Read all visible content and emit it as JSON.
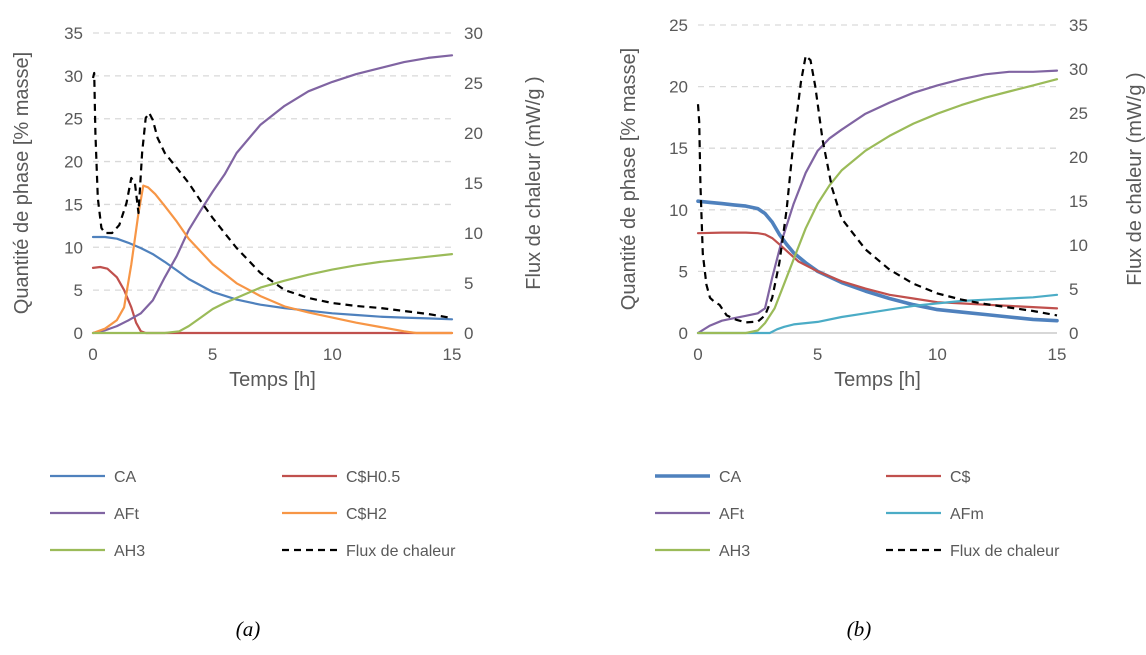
{
  "chart_data": [
    {
      "type": "line",
      "caption": "(a)",
      "xlabel": "Temps [h]",
      "ylabel": "Quantité de phase [% masse]",
      "y2label": "Flux de chaleur (mW/g )",
      "xlim": [
        0,
        15
      ],
      "ylim": [
        0,
        35
      ],
      "y2lim": [
        0,
        30
      ],
      "xticks": [
        "0",
        "5",
        "10",
        "15"
      ],
      "yticks": [
        "0",
        "5",
        "10",
        "15",
        "20",
        "25",
        "30",
        "35"
      ],
      "y2ticks": [
        "0",
        "5",
        "10",
        "15",
        "20",
        "25",
        "30"
      ],
      "grid": "horizontal dashed",
      "legend_position": "bottom",
      "series": [
        {
          "name": "CA",
          "color": "#4f81bd",
          "style": "solid",
          "axis": "left",
          "x": [
            0,
            0.5,
            1,
            1.5,
            2,
            2.5,
            3,
            3.5,
            4,
            5,
            6,
            7,
            8,
            9,
            10,
            11,
            12,
            13,
            14,
            15
          ],
          "y": [
            11.2,
            11.2,
            11,
            10.5,
            9.9,
            9.2,
            8.3,
            7.3,
            6.3,
            4.8,
            3.9,
            3.3,
            2.9,
            2.6,
            2.3,
            2.1,
            1.9,
            1.8,
            1.7,
            1.6
          ]
        },
        {
          "name": "C$H0.5",
          "color": "#c0504d",
          "style": "solid",
          "axis": "left",
          "x": [
            0,
            0.3,
            0.6,
            1,
            1.3,
            1.6,
            1.8,
            2,
            2.2,
            3,
            5,
            10,
            15
          ],
          "y": [
            7.6,
            7.7,
            7.5,
            6.5,
            5,
            3,
            1.2,
            0.2,
            0,
            0,
            0,
            0,
            0
          ]
        },
        {
          "name": "AFt",
          "color": "#8064a2",
          "style": "solid",
          "axis": "left",
          "x": [
            0,
            0.5,
            1,
            1.5,
            2,
            2.5,
            3,
            3.5,
            4,
            4.5,
            5,
            5.5,
            6,
            7,
            8,
            9,
            10,
            11,
            12,
            13,
            14,
            15
          ],
          "y": [
            0,
            0.3,
            0.8,
            1.5,
            2.3,
            3.8,
            6.5,
            9,
            12,
            14.3,
            16.5,
            18.5,
            21,
            24.3,
            26.5,
            28.2,
            29.3,
            30.2,
            30.9,
            31.6,
            32.1,
            32.4
          ]
        },
        {
          "name": "C$H2",
          "color": "#f79646",
          "style": "solid",
          "axis": "left",
          "x": [
            0,
            0.5,
            1,
            1.3,
            1.6,
            1.9,
            2.1,
            2.3,
            2.6,
            3,
            3.5,
            4,
            5,
            6,
            7,
            8,
            9,
            10,
            11,
            12,
            13,
            13.5,
            14,
            15
          ],
          "y": [
            0,
            0.5,
            1.5,
            3,
            8,
            14,
            17.2,
            17,
            16.2,
            14.8,
            13,
            11,
            8,
            5.8,
            4.3,
            3.1,
            2.4,
            1.8,
            1.2,
            0.7,
            0.2,
            0,
            0,
            0
          ]
        },
        {
          "name": "AH3",
          "color": "#9bbb59",
          "style": "solid",
          "axis": "left",
          "x": [
            0,
            3,
            3.6,
            4,
            4.5,
            5,
            5.5,
            6,
            7,
            8,
            9,
            10,
            11,
            12,
            13,
            14,
            15
          ],
          "y": [
            0,
            0,
            0.2,
            0.8,
            1.8,
            2.8,
            3.5,
            4.1,
            5.3,
            6.1,
            6.8,
            7.4,
            7.9,
            8.3,
            8.6,
            8.9,
            9.2
          ]
        },
        {
          "name": "Flux de chaleur",
          "color": "#000000",
          "style": "dashed",
          "axis": "right",
          "x": [
            0,
            0.05,
            0.1,
            0.2,
            0.35,
            0.5,
            0.8,
            1.1,
            1.4,
            1.6,
            1.75,
            1.9,
            2.05,
            2.2,
            2.35,
            2.5,
            2.7,
            3,
            3.5,
            4,
            4.5,
            5,
            5.5,
            6,
            7,
            8,
            9,
            10,
            11,
            12,
            13,
            14,
            15
          ],
          "y": [
            25.5,
            26,
            20,
            13.5,
            10.5,
            10,
            10,
            10.8,
            13,
            15.5,
            15,
            12,
            18,
            21.5,
            22,
            21.3,
            19.5,
            18,
            16.5,
            15,
            13.2,
            11.5,
            10,
            8.5,
            6,
            4.3,
            3.5,
            3,
            2.7,
            2.5,
            2.2,
            1.9,
            1.5
          ]
        }
      ]
    },
    {
      "type": "line",
      "caption": "(b)",
      "xlabel": "Temps [h]",
      "ylabel": "Quantité de phase [% masse]",
      "y2label": "Flux de chaleur (mW/g )",
      "xlim": [
        0,
        15
      ],
      "ylim": [
        0,
        25
      ],
      "y2lim": [
        0,
        35
      ],
      "xticks": [
        "0",
        "5",
        "10",
        "15"
      ],
      "yticks": [
        "0",
        "5",
        "10",
        "15",
        "20",
        "25"
      ],
      "y2ticks": [
        "0",
        "5",
        "10",
        "15",
        "20",
        "25",
        "30",
        "35"
      ],
      "grid": "horizontal dashed",
      "legend_position": "bottom",
      "series": [
        {
          "name": "CA",
          "color": "#4f81bd",
          "style": "solid-thick",
          "axis": "left",
          "x": [
            0,
            0.5,
            1,
            1.5,
            2,
            2.5,
            2.8,
            3.1,
            3.4,
            3.7,
            4,
            4.5,
            5,
            6,
            7,
            8,
            9,
            10,
            11,
            12,
            13,
            14,
            15
          ],
          "y": [
            10.7,
            10.6,
            10.5,
            10.4,
            10.3,
            10.1,
            9.7,
            9,
            8,
            7.2,
            6.5,
            5.7,
            5,
            4.1,
            3.4,
            2.8,
            2.3,
            1.9,
            1.7,
            1.5,
            1.3,
            1.1,
            1
          ]
        },
        {
          "name": "C$",
          "color": "#c0504d",
          "style": "solid",
          "axis": "left",
          "x": [
            0,
            1,
            2,
            2.5,
            2.8,
            3.1,
            3.4,
            3.8,
            4.2,
            5,
            6,
            7,
            8,
            9,
            10,
            11,
            12,
            13,
            14,
            15
          ],
          "y": [
            8.1,
            8.15,
            8.15,
            8.1,
            8,
            7.7,
            7.2,
            6.5,
            5.8,
            5,
            4.2,
            3.6,
            3.1,
            2.8,
            2.5,
            2.4,
            2.3,
            2.2,
            2.1,
            2
          ]
        },
        {
          "name": "AFt",
          "color": "#8064a2",
          "style": "solid",
          "axis": "left",
          "x": [
            0,
            0.5,
            1,
            1.5,
            2,
            2.5,
            2.8,
            3.1,
            3.5,
            4,
            4.5,
            5,
            5.5,
            6,
            7,
            8,
            9,
            10,
            11,
            12,
            13,
            14,
            15
          ],
          "y": [
            0,
            0.6,
            1,
            1.2,
            1.4,
            1.6,
            2,
            4.5,
            7.5,
            10.5,
            13,
            14.8,
            15.8,
            16.5,
            17.8,
            18.7,
            19.5,
            20.1,
            20.6,
            21,
            21.2,
            21.2,
            21.3
          ]
        },
        {
          "name": "AFm",
          "color": "#4bacc6",
          "style": "solid",
          "axis": "left",
          "x": [
            0,
            3,
            3.3,
            3.6,
            4,
            5,
            6,
            7,
            8,
            9,
            10,
            11,
            12,
            13,
            14,
            15
          ],
          "y": [
            0,
            0,
            0.3,
            0.5,
            0.7,
            0.9,
            1.3,
            1.6,
            1.9,
            2.2,
            2.4,
            2.6,
            2.7,
            2.8,
            2.9,
            3.1
          ]
        },
        {
          "name": "AH3",
          "color": "#9bbb59",
          "style": "solid",
          "axis": "left",
          "x": [
            0,
            2,
            2.5,
            2.8,
            3.2,
            3.6,
            4,
            4.5,
            5,
            5.5,
            6,
            7,
            8,
            9,
            10,
            11,
            12,
            13,
            14,
            15
          ],
          "y": [
            0,
            0,
            0.2,
            0.8,
            2,
            4,
            6,
            8.5,
            10.5,
            12,
            13.2,
            14.8,
            16,
            17,
            17.8,
            18.5,
            19.1,
            19.6,
            20.1,
            20.6
          ]
        },
        {
          "name": "Flux de chaleur",
          "color": "#000000",
          "style": "dashed",
          "axis": "right",
          "x": [
            0,
            0.05,
            0.1,
            0.2,
            0.35,
            0.5,
            0.7,
            0.9,
            1.2,
            1.6,
            2,
            2.5,
            2.8,
            3.1,
            3.4,
            3.7,
            4,
            4.3,
            4.5,
            4.7,
            4.9,
            5.2,
            5.6,
            6,
            7,
            8,
            9,
            10,
            11,
            12,
            13,
            14,
            15
          ],
          "y": [
            26,
            24,
            17,
            9,
            5.5,
            4,
            3.5,
            3.2,
            2,
            1.5,
            1.2,
            1.3,
            2,
            4,
            8,
            14,
            22,
            28.5,
            31.5,
            31,
            28,
            22,
            16.5,
            13,
            9.5,
            7.2,
            5.6,
            4.5,
            3.8,
            3.3,
            2.9,
            2.5,
            2
          ]
        }
      ]
    }
  ]
}
